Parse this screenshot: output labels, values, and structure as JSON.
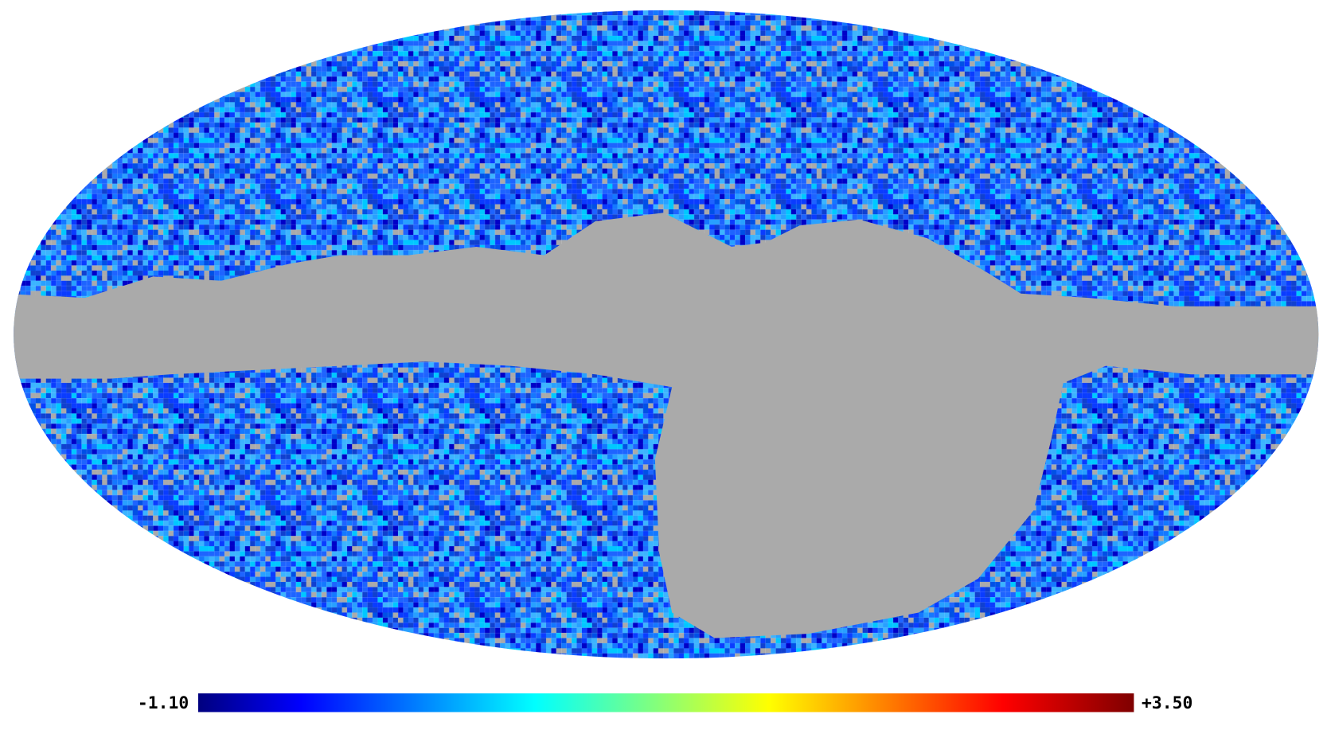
{
  "colorbar": {
    "min_label": "-1.10",
    "max_label": "+3.50"
  }
}
